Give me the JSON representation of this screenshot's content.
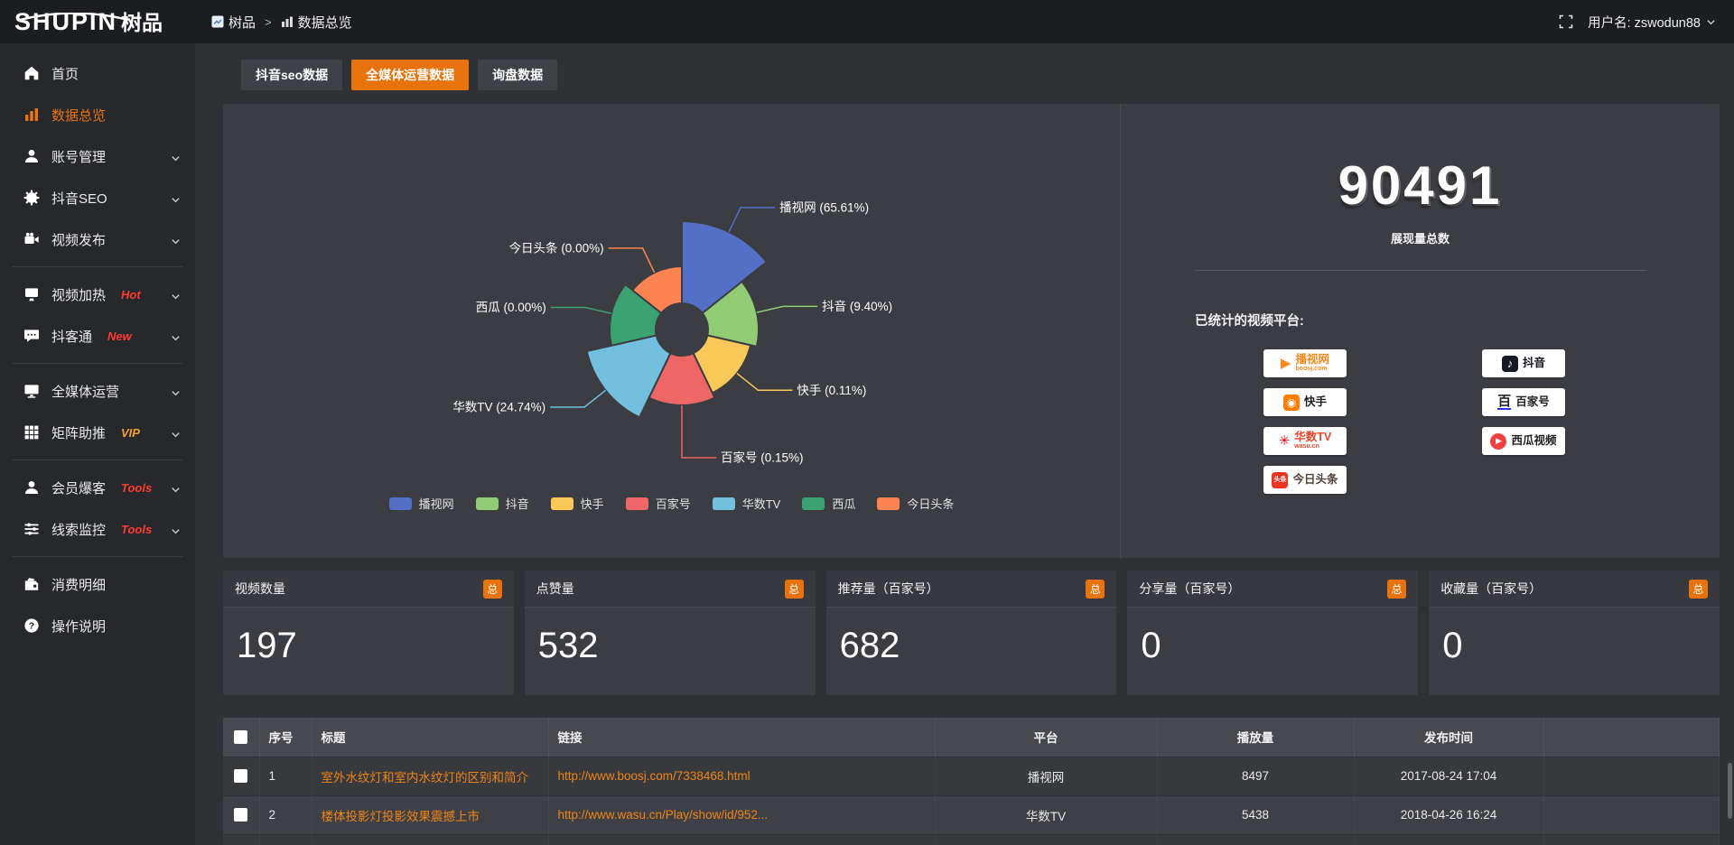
{
  "topbar": {
    "logo_main": "SHUPIN",
    "logo_cn": "树品",
    "breadcrumb_root": "树品",
    "breadcrumb_sep": ">",
    "breadcrumb_current": "数据总览",
    "username": "用户名: zswodun88"
  },
  "sidebar": {
    "items": [
      {
        "label": "首页",
        "icon": "home"
      },
      {
        "label": "数据总览",
        "icon": "chart",
        "active": true
      },
      {
        "label": "账号管理",
        "icon": "user",
        "chevron": true
      },
      {
        "label": "抖音SEO",
        "icon": "gear",
        "chevron": true
      },
      {
        "label": "视频发布",
        "icon": "video",
        "chevron": true
      },
      {
        "divider": true
      },
      {
        "label": "视频加热",
        "icon": "heat",
        "chevron": true,
        "badge": "Hot",
        "badge_color": "#ff3b30"
      },
      {
        "label": "抖客通",
        "icon": "chat",
        "chevron": true,
        "badge": "New",
        "badge_color": "#ff3b30"
      },
      {
        "divider": true
      },
      {
        "label": "全媒体运营",
        "icon": "display",
        "chevron": true
      },
      {
        "label": "矩阵助推",
        "icon": "grid",
        "chevron": true,
        "badge": "VIP",
        "badge_color": "#efa12c"
      },
      {
        "divider": true
      },
      {
        "label": "会员爆客",
        "icon": "member",
        "chevron": true,
        "badge": "Tools",
        "badge_color": "#ff3b30"
      },
      {
        "label": "线索监控",
        "icon": "sliders",
        "chevron": true,
        "badge": "Tools",
        "badge_color": "#ff3b30"
      },
      {
        "divider": true
      },
      {
        "label": "消费明细",
        "icon": "wallet"
      },
      {
        "label": "操作说明",
        "icon": "help"
      }
    ]
  },
  "tabs": [
    {
      "label": "抖音seo数据",
      "active": false
    },
    {
      "label": "全媒体运营数据",
      "active": true
    },
    {
      "label": "询盘数据",
      "active": false
    }
  ],
  "chart_data": {
    "type": "pie",
    "variant": "nightingale-rose",
    "labels": [
      "播视网",
      "抖音",
      "快手",
      "百家号",
      "华数TV",
      "西瓜",
      "今日头条"
    ],
    "values_percent": [
      65.61,
      9.4,
      0.11,
      0.15,
      24.74,
      0.0,
      0.0
    ],
    "colors": [
      "#5470c6",
      "#91cc75",
      "#fac858",
      "#ee6666",
      "#73c0de",
      "#3ba272",
      "#fc8452"
    ],
    "label_format": "{name} ({value}%)",
    "legend_position": "bottom",
    "display_radii": [
      120,
      85,
      78,
      84,
      108,
      80,
      70
    ],
    "inner_radius": 30
  },
  "summary": {
    "total_value": "90491",
    "total_label": "展现量总数",
    "platforms_label": "已统计的视频平台:",
    "platforms": [
      {
        "name": "播视网",
        "sub": "boosj.com",
        "glyph": "play",
        "brand_color": "#f28a1e",
        "name_color": "#f28a1e"
      },
      {
        "name": "抖音",
        "glyph": "note",
        "brand_color": "#161823",
        "name_color": "#161823"
      },
      {
        "name": "快手",
        "glyph": "camera",
        "brand_color": "#ff7e00",
        "name_color": "#222222"
      },
      {
        "name": "百家号",
        "glyph": "bai",
        "glyph_text": "百",
        "brand_color": "#2932e1",
        "name_color": "#222222"
      },
      {
        "name": "华数TV",
        "sub": "wasu.cn",
        "glyph": "burst",
        "brand_color": "#e60012",
        "name_color": "#e8442b"
      },
      {
        "name": "西瓜视频",
        "glyph": "play-circle",
        "brand_color": "#f04142",
        "name_color": "#222222"
      },
      {
        "name": "今日头条",
        "glyph": "toutiao",
        "glyph_text": "头条",
        "brand_color": "#ed3321",
        "name_color": "#55403a"
      }
    ]
  },
  "stat_cards": [
    {
      "label": "视频数量",
      "badge": "总",
      "value": "197"
    },
    {
      "label": "点赞量",
      "badge": "总",
      "value": "532"
    },
    {
      "label": "推荐量（百家号）",
      "badge": "总",
      "value": "682"
    },
    {
      "label": "分享量（百家号）",
      "badge": "总",
      "value": "0"
    },
    {
      "label": "收藏量（百家号）",
      "badge": "总",
      "value": "0"
    }
  ],
  "table": {
    "headers": [
      "序号",
      "标题",
      "链接",
      "平台",
      "播放量",
      "发布时间"
    ],
    "rows": [
      {
        "seq": "1",
        "title": "室外水纹灯和室内水纹灯的区别和简介",
        "link": "http://www.boosj.com/7338468.html",
        "platform": "播视网",
        "plays": "8497",
        "time": "2017-08-24 17:04"
      },
      {
        "seq": "2",
        "title": "楼体投影灯投影效果震撼上市",
        "link": "http://www.wasu.cn/Play/show/id/952...",
        "platform": "华数TV",
        "plays": "5438",
        "time": "2018-04-26 16:24"
      }
    ]
  }
}
